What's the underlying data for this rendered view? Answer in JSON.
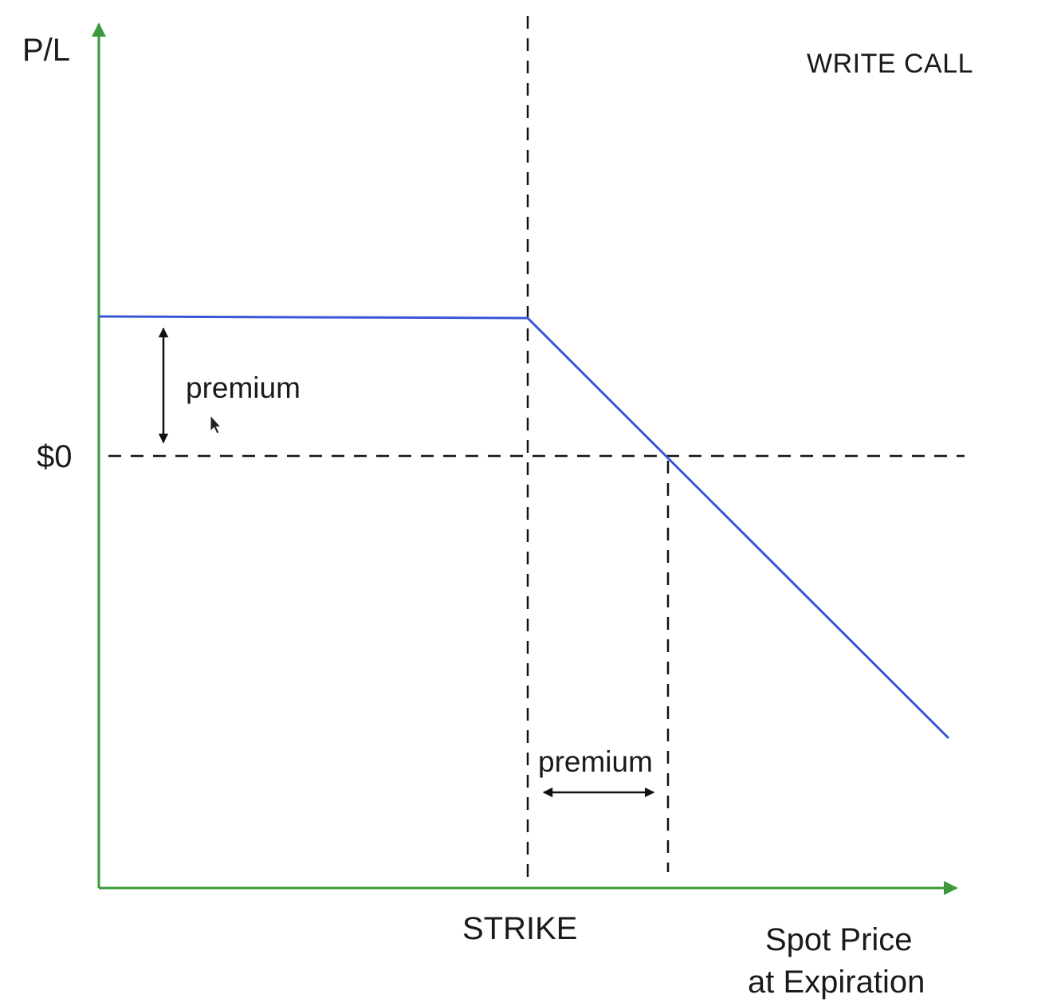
{
  "title": "WRITE CALL",
  "y_axis_label": "P/L",
  "zero_label": "$0",
  "x_axis_label_line1": "Spot Price",
  "x_axis_label_line2": "at Expiration",
  "strike_label": "STRIKE",
  "premium_label_vertical": "premium",
  "premium_label_horizontal": "premium",
  "colors": {
    "axis": "#3a9a3a",
    "payoff": "#3b55d6",
    "guides": "#111111",
    "text": "#1a1a1a"
  },
  "icons": [
    "mouse-cursor-icon"
  ]
}
